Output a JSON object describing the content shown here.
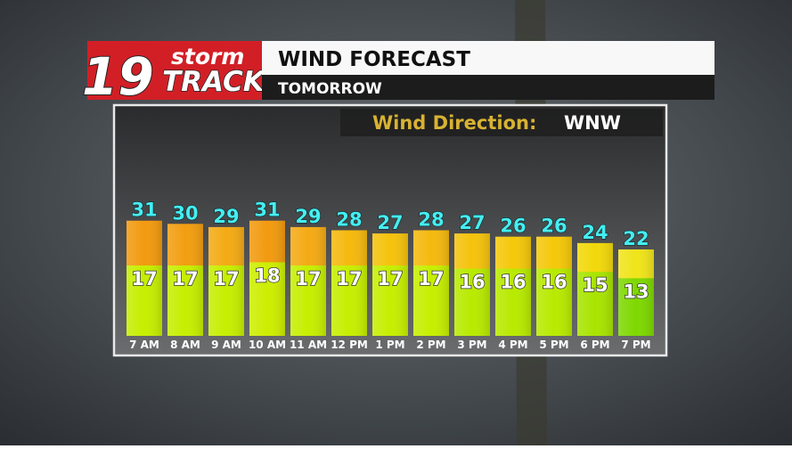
{
  "logo": {
    "number": "19",
    "top": "storm",
    "bottom": "TRACK"
  },
  "chart_data": {
    "type": "bar",
    "title": "WIND FORECAST",
    "subtitle": "TOMORROW",
    "annotation_label": "Wind Direction:",
    "annotation_value": "WNW",
    "categories": [
      "7 AM",
      "8 AM",
      "9 AM",
      "10 AM",
      "11 AM",
      "12 PM",
      "1 PM",
      "2 PM",
      "3 PM",
      "4 PM",
      "5 PM",
      "6 PM",
      "7 PM"
    ],
    "series": [
      {
        "values": [
          31,
          30,
          29,
          31,
          29,
          28,
          27,
          28,
          27,
          26,
          26,
          24,
          22
        ],
        "colors": [
          "#f29a0f",
          "#f29e10",
          "#f4aa14",
          "#f29a0f",
          "#f4aa14",
          "#f5b90e",
          "#f5c20c",
          "#f5b90e",
          "#f5c20c",
          "#f5c80a",
          "#f5c80a",
          "#f2d80a",
          "#f0e41a"
        ]
      },
      {
        "values": [
          17,
          17,
          17,
          18,
          17,
          17,
          17,
          17,
          16,
          16,
          16,
          15,
          13
        ],
        "colors": [
          "#c6ee00",
          "#c6ee00",
          "#c6ee00",
          "#cdee00",
          "#c6ee00",
          "#c6ee00",
          "#c6ee00",
          "#c6ee00",
          "#b8ea00",
          "#b8ea00",
          "#b8ea00",
          "#a8e400",
          "#7ed800"
        ]
      }
    ],
    "ylim": [
      -5,
      66
    ]
  }
}
